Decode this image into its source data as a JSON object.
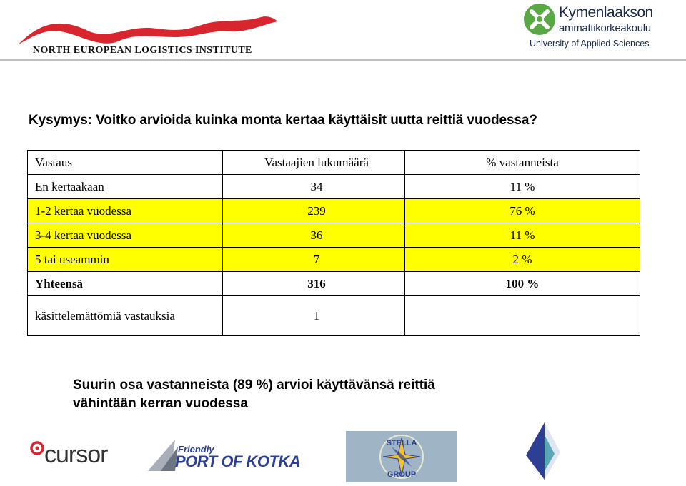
{
  "header": {
    "left_logo_text": "NORTH EUROPEAN LOGISTICS INSTITUTE",
    "right_logo": {
      "name": "Kymenlaakson",
      "subtitle": "ammattikorkeakoulu",
      "english": "University of Applied Sciences"
    }
  },
  "question": "Kysymys: Voitko arvioida kuinka monta kertaa käyttäisit uutta reittiä vuodessa?",
  "table": {
    "headers": [
      "Vastaus",
      "Vastaajien lukumäärä",
      "% vastanneista"
    ],
    "rows": [
      {
        "answer": "En kertaakaan",
        "count": "34",
        "percent": "11 %"
      },
      {
        "answer": "1-2 kertaa vuodessa",
        "count": "239",
        "percent": "76 %"
      },
      {
        "answer": "3-4 kertaa vuodessa",
        "count": "36",
        "percent": "11 %"
      },
      {
        "answer": "5 tai useammin",
        "count": "7",
        "percent": "2 %"
      }
    ],
    "total": {
      "answer": "Yhteensä",
      "count": "316",
      "percent": "100 %"
    },
    "invalid": {
      "answer": "käsittelemättömiä vastauksia",
      "count": "1",
      "percent": ""
    },
    "highlight_color": "#ffff00"
  },
  "conclusion": {
    "line1": "Suurin osa vastanneista (89 %) arvioi käyttävänsä reittiä",
    "line2": "vähintään kerran vuodessa"
  },
  "footer_logos": {
    "cursor": "cursor",
    "kotka_top": "Friendly",
    "kotka_main": "PORT OF KOTKA",
    "stella_top": "STELLA",
    "stella_bottom": "GROUP"
  },
  "colors": {
    "brand_red": "#d7262d",
    "kymi_green": "#5aa845",
    "kymi_navy": "#1b2a4a",
    "kotka_blue": "#2c3f93"
  }
}
